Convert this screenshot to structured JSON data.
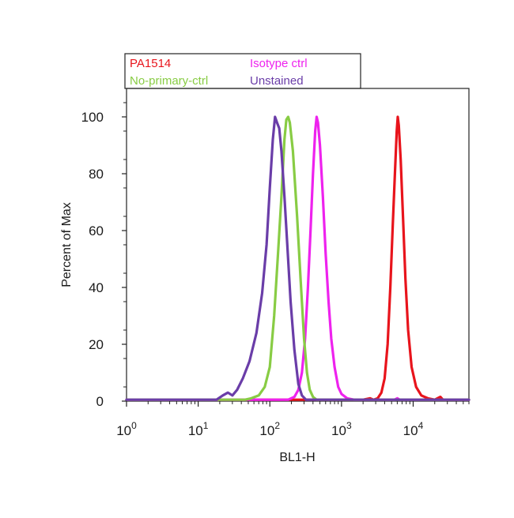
{
  "chart_data": {
    "type": "line",
    "xlabel": "BL1-H",
    "ylabel": "Percent of Max",
    "x_scale": "log",
    "xlim": [
      1,
      60000
    ],
    "ylim": [
      0,
      110
    ],
    "x_ticks": [
      {
        "value": 1,
        "base": "10",
        "exp": "0"
      },
      {
        "value": 10,
        "base": "10",
        "exp": "1"
      },
      {
        "value": 100,
        "base": "10",
        "exp": "2"
      },
      {
        "value": 1000,
        "base": "10",
        "exp": "3"
      },
      {
        "value": 10000,
        "base": "10",
        "exp": "4"
      }
    ],
    "y_ticks": [
      0,
      20,
      40,
      60,
      80,
      100
    ],
    "grid": false,
    "legend_position": "top-left",
    "series": [
      {
        "name": "PA1514",
        "color": "#e8141c",
        "points": [
          [
            1,
            0.5
          ],
          [
            2000,
            0.5
          ],
          [
            2500,
            1
          ],
          [
            2800,
            0.5
          ],
          [
            3200,
            1
          ],
          [
            3600,
            3
          ],
          [
            4000,
            8
          ],
          [
            4400,
            20
          ],
          [
            4800,
            40
          ],
          [
            5200,
            62
          ],
          [
            5600,
            82
          ],
          [
            5900,
            95
          ],
          [
            6100,
            100
          ],
          [
            6300,
            97
          ],
          [
            6700,
            85
          ],
          [
            7200,
            65
          ],
          [
            7800,
            43
          ],
          [
            8500,
            25
          ],
          [
            9500,
            12
          ],
          [
            11000,
            5
          ],
          [
            13000,
            2
          ],
          [
            16000,
            1
          ],
          [
            20000,
            0.5
          ],
          [
            24000,
            1.5
          ],
          [
            26000,
            0.5
          ],
          [
            60000,
            0.5
          ]
        ]
      },
      {
        "name": "Isotype ctrl",
        "color": "#ee22ee",
        "points": [
          [
            1,
            0.5
          ],
          [
            180,
            0.5
          ],
          [
            220,
            1.5
          ],
          [
            250,
            4
          ],
          [
            280,
            10
          ],
          [
            310,
            22
          ],
          [
            340,
            40
          ],
          [
            370,
            60
          ],
          [
            400,
            80
          ],
          [
            430,
            95
          ],
          [
            450,
            100
          ],
          [
            470,
            98
          ],
          [
            500,
            90
          ],
          [
            550,
            72
          ],
          [
            600,
            52
          ],
          [
            660,
            35
          ],
          [
            720,
            22
          ],
          [
            800,
            12
          ],
          [
            900,
            5
          ],
          [
            1000,
            2.5
          ],
          [
            1200,
            1
          ],
          [
            1500,
            0.5
          ],
          [
            5500,
            0.5
          ],
          [
            6000,
            1
          ],
          [
            6500,
            0.5
          ],
          [
            60000,
            0.5
          ]
        ]
      },
      {
        "name": "No-primary-ctrl",
        "color": "#88cc44",
        "points": [
          [
            1,
            0.5
          ],
          [
            45,
            0.5
          ],
          [
            55,
            1
          ],
          [
            70,
            2
          ],
          [
            85,
            5
          ],
          [
            100,
            12
          ],
          [
            115,
            30
          ],
          [
            130,
            52
          ],
          [
            145,
            72
          ],
          [
            160,
            92
          ],
          [
            170,
            99
          ],
          [
            180,
            100
          ],
          [
            190,
            98
          ],
          [
            210,
            88
          ],
          [
            240,
            65
          ],
          [
            270,
            42
          ],
          [
            300,
            22
          ],
          [
            330,
            10
          ],
          [
            360,
            4
          ],
          [
            400,
            1.5
          ],
          [
            450,
            0.5
          ],
          [
            60000,
            0.5
          ]
        ]
      },
      {
        "name": "Unstained",
        "color": "#6a3da8",
        "points": [
          [
            1,
            0.5
          ],
          [
            18,
            0.5
          ],
          [
            22,
            2
          ],
          [
            26,
            3
          ],
          [
            30,
            2
          ],
          [
            35,
            4
          ],
          [
            42,
            8
          ],
          [
            52,
            14
          ],
          [
            65,
            24
          ],
          [
            78,
            38
          ],
          [
            90,
            55
          ],
          [
            100,
            75
          ],
          [
            110,
            92
          ],
          [
            118,
            100
          ],
          [
            126,
            98
          ],
          [
            135,
            96
          ],
          [
            145,
            88
          ],
          [
            160,
            72
          ],
          [
            175,
            55
          ],
          [
            195,
            35
          ],
          [
            220,
            18
          ],
          [
            250,
            6
          ],
          [
            280,
            2
          ],
          [
            320,
            0.5
          ],
          [
            60000,
            0.5
          ]
        ]
      }
    ]
  }
}
